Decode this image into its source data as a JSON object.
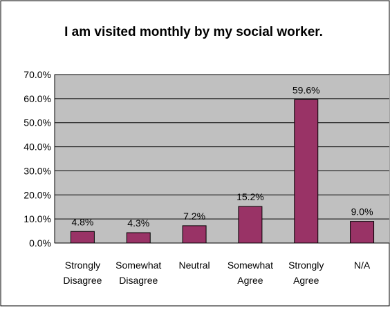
{
  "chart_data": {
    "type": "bar",
    "title": "I am visited monthly by my social worker.",
    "categories": [
      [
        "Strongly",
        "Disagree"
      ],
      [
        "Somewhat",
        "Disagree"
      ],
      [
        "Neutral"
      ],
      [
        "Somewhat",
        "Agree"
      ],
      [
        "Strongly",
        "Agree"
      ],
      [
        "N/A"
      ]
    ],
    "values": [
      4.8,
      4.3,
      7.2,
      15.2,
      59.6,
      9.0
    ],
    "data_labels": [
      "4.8%",
      "4.3%",
      "7.2%",
      "15.2%",
      "59.6%",
      "9.0%"
    ],
    "y_ticks": [
      "0.0%",
      "10.0%",
      "20.0%",
      "30.0%",
      "40.0%",
      "50.0%",
      "60.0%",
      "70.0%"
    ],
    "ylim": [
      0,
      70
    ],
    "grid": true,
    "legend": "none",
    "colors": {
      "bar": "#993366",
      "plot_background": "#c0c0c0",
      "gridline": "#000000"
    }
  }
}
